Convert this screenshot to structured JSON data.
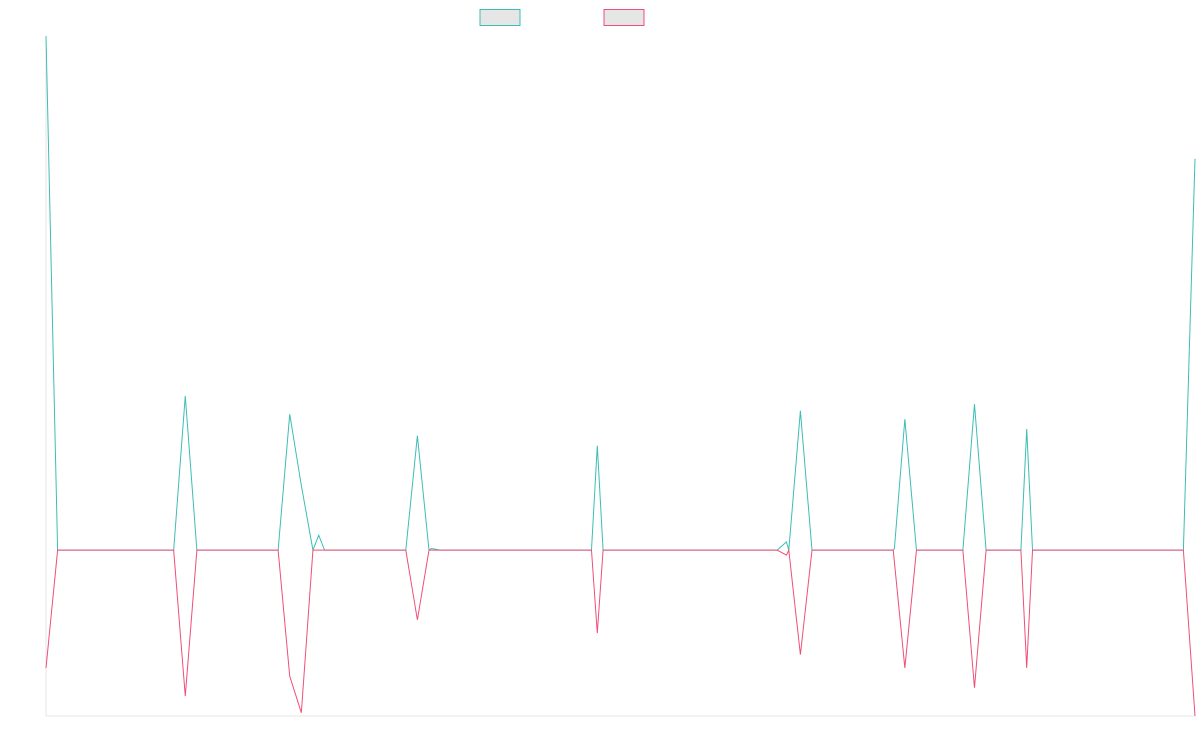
{
  "chart_data": {
    "type": "line",
    "title": "",
    "xlabel": "",
    "ylabel": "",
    "grid": false,
    "legend_position": "top-center",
    "x_count": 100,
    "ylim": [
      -1.0,
      3.1
    ],
    "series": [
      {
        "color": "#3dbdb4",
        "legend_fill": "#e6e6e6",
        "points": [
          [
            0,
            3.1
          ],
          [
            12,
            0.93
          ],
          [
            21,
            0.82
          ],
          [
            22,
            0.39
          ],
          [
            23.5,
            0.09
          ],
          [
            32,
            0.69
          ],
          [
            33.2,
            0.01
          ],
          [
            34.6,
            0.0
          ],
          [
            47.5,
            0.63
          ],
          [
            65,
            0.84
          ],
          [
            63.8,
            0.05
          ],
          [
            74,
            0.79
          ],
          [
            73.1,
            0.01
          ],
          [
            80,
            0.88
          ],
          [
            84.5,
            0.73
          ],
          [
            99,
            2.36
          ]
        ]
      },
      {
        "color": "#ee4f78",
        "legend_fill": "#e6e6e6",
        "points": [
          [
            0,
            -0.71
          ],
          [
            12,
            -0.88
          ],
          [
            21,
            -0.76
          ],
          [
            22,
            -0.98
          ],
          [
            32,
            -0.42
          ],
          [
            47.5,
            -0.5
          ],
          [
            63.8,
            -0.03
          ],
          [
            65,
            -0.63
          ],
          [
            74,
            -0.71
          ],
          [
            80,
            -0.83
          ],
          [
            84.5,
            -0.71
          ],
          [
            99,
            -1.0
          ]
        ]
      }
    ]
  }
}
